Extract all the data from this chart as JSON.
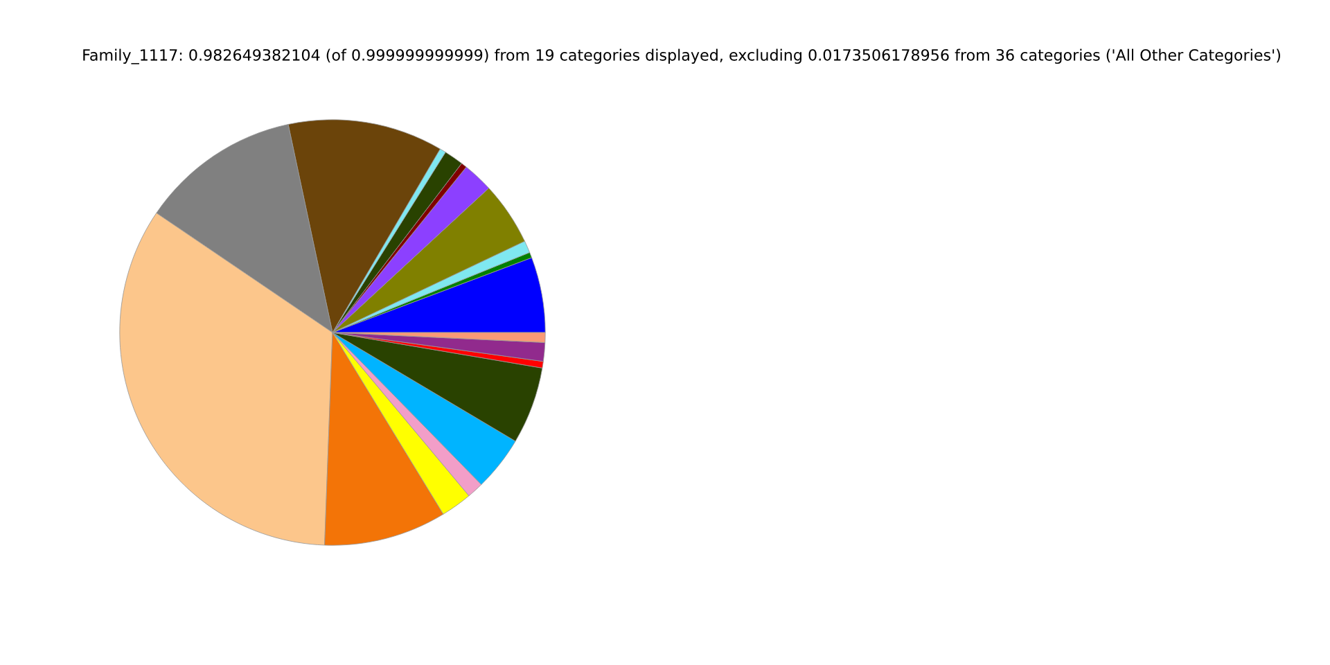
{
  "chart_data": {
    "type": "pie",
    "title": "Family_1117: 0.982649382104 (of 0.999999999999) from 19 categories displayed, excluding 0.0173506178956 from 36 categories ('All Other Categories')",
    "categories": [
      null,
      null,
      null,
      null,
      null,
      null,
      null,
      null,
      null,
      null,
      null,
      null,
      null,
      null,
      null,
      null,
      null,
      null,
      null
    ],
    "values": [
      5.72,
      0.42,
      0.92,
      4.81,
      2.31,
      0.44,
      1.47,
      0.47,
      11.78,
      12.17,
      33.9,
      9.31,
      2.36,
      1.25,
      4.14,
      5.86,
      0.5,
      1.42,
      0.75
    ],
    "colors": [
      "#0000ff",
      "#008000",
      "#7fe8f0",
      "#808000",
      "#8c40ff",
      "#800000",
      "#294200",
      "#7fe8f0",
      "#6b440a",
      "#808080",
      "#fcc68b",
      "#f37407",
      "#ffff00",
      "#f29ec8",
      "#00b4ff",
      "#294200",
      "#ff0000",
      "#912a8d",
      "#f99a76"
    ],
    "legend": false
  }
}
